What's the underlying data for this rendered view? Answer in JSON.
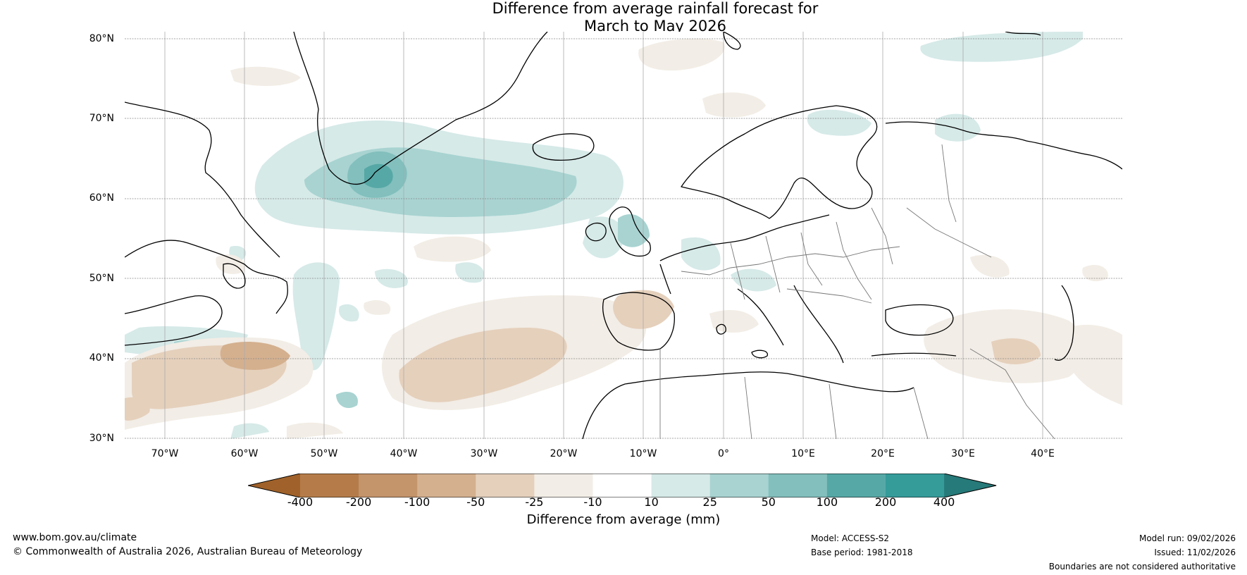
{
  "header": {
    "title_line1": "Difference from average rainfall forecast for",
    "title_line2": "March to May 2026"
  },
  "map": {
    "latitudes": [
      "80°N",
      "70°N",
      "60°N",
      "50°N",
      "40°N",
      "30°N"
    ],
    "longitudes": [
      "70°W",
      "60°W",
      "50°W",
      "40°W",
      "30°W",
      "20°W",
      "10°W",
      "0°",
      "10°E",
      "20°E",
      "30°E",
      "40°E"
    ],
    "lat_range": [
      30,
      80
    ],
    "lon_range": [
      -75,
      50
    ]
  },
  "legend": {
    "title": "Difference from average (mm)",
    "ticks": [
      "-400",
      "-200",
      "-100",
      "-50",
      "-25",
      "-10",
      "10",
      "25",
      "50",
      "100",
      "200",
      "400"
    ],
    "colors": [
      "#a0622a",
      "#b57c4a",
      "#c4946b",
      "#d4b08f",
      "#e5d0bc",
      "#f2ede6",
      "#ffffff",
      "#d6eae8",
      "#a8d3d1",
      "#82bfbd",
      "#56a8a6",
      "#359c9a",
      "#267a79"
    ]
  },
  "footer": {
    "site": "www.bom.gov.au/climate",
    "copyright": "© Commonwealth of Australia 2026, Australian Bureau of Meteorology",
    "model": "Model: ACCESS-S2",
    "base_period": "Base period: 1981-2018",
    "model_run": "Model run: 09/02/2026",
    "issued": "Issued: 11/02/2026",
    "disclaimer": "Boundaries are not considered authoritative"
  }
}
